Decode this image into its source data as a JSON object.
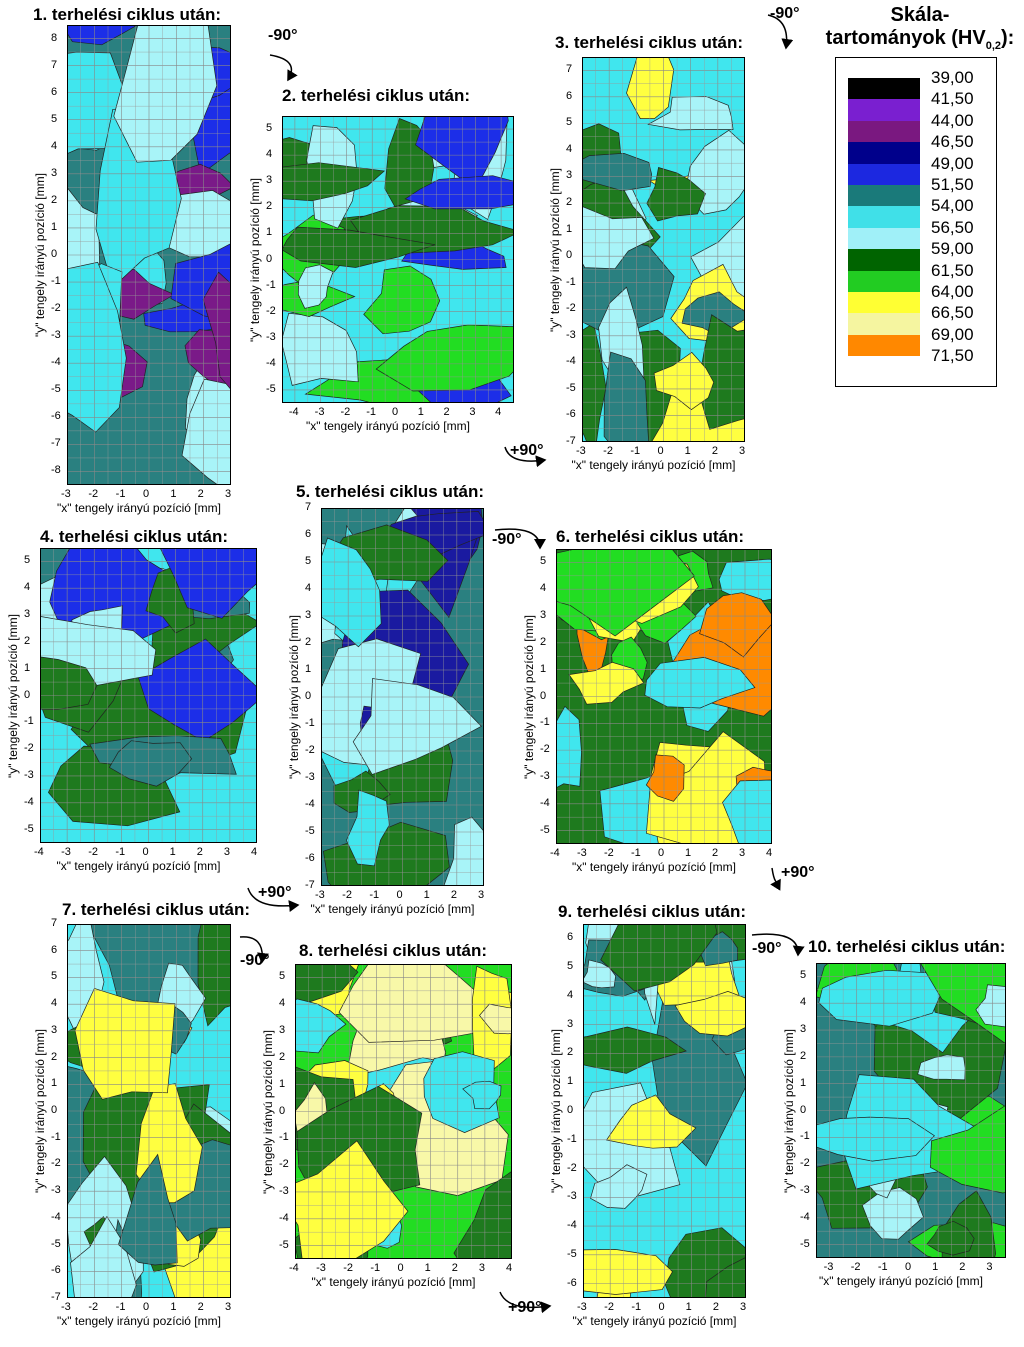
{
  "chart_data": [
    {
      "type": "heatmap",
      "title": "1. terhelési ciklus után:",
      "xlabel": "\"x\" tengely irányú pozíció [mm]",
      "ylabel": "\"y\" tengely irányú pozíció [mm]",
      "xlim": [
        -3,
        3
      ],
      "ylim": [
        -8.5,
        8.5
      ],
      "x_ticks": [
        "-3",
        "-2",
        "-1",
        "0",
        "1",
        "2",
        "3"
      ],
      "y_ticks": [
        "8",
        "7",
        "6",
        "5",
        "4",
        "3",
        "2",
        "1",
        "0",
        "-1",
        "-2",
        "-3",
        "-4",
        "-5",
        "-6",
        "-7",
        "-8"
      ],
      "dominant_range": "51,50–56,50"
    },
    {
      "type": "heatmap",
      "title": "2. terhelési ciklus után:",
      "xlabel": "\"x\" tengely irányú pozíció [mm]",
      "ylabel": "\"y\" tengely irányú pozíció [mm]",
      "xlim": [
        -4.5,
        4.5
      ],
      "ylim": [
        -5.5,
        5.5
      ],
      "x_ticks": [
        "-4",
        "-3",
        "-2",
        "-1",
        "0",
        "1",
        "2",
        "3",
        "4"
      ],
      "y_ticks": [
        "5",
        "4",
        "3",
        "2",
        "1",
        "0",
        "-1",
        "-2",
        "-3",
        "-4",
        "-5"
      ],
      "dominant_range": "54,00–59,00"
    },
    {
      "type": "heatmap",
      "title": "3. terhelési ciklus után:",
      "xlabel": "\"x\" tengely irányú pozíció [mm]",
      "ylabel": "\"y\" tengely irányú pozíció [mm]",
      "xlim": [
        -3,
        3
      ],
      "ylim": [
        -7,
        7.5
      ],
      "x_ticks": [
        "-3",
        "-2",
        "-1",
        "0",
        "1",
        "2",
        "3"
      ],
      "y_ticks": [
        "7",
        "6",
        "5",
        "4",
        "3",
        "2",
        "1",
        "0",
        "-1",
        "-2",
        "-3",
        "-4",
        "-5",
        "-6",
        "-7"
      ],
      "dominant_range": "54,00–59,00"
    },
    {
      "type": "heatmap",
      "title": "4. terhelési ciklus után:",
      "xlabel": "\"x\" tengely irányú pozíció [mm]",
      "ylabel": "\"y\" tengely irányú pozíció [mm]",
      "xlim": [
        -4,
        4
      ],
      "ylim": [
        -5.5,
        5.5
      ],
      "x_ticks": [
        "-4",
        "-3",
        "-2",
        "-1",
        "0",
        "1",
        "2",
        "3",
        "4"
      ],
      "y_ticks": [
        "5",
        "4",
        "3",
        "2",
        "1",
        "0",
        "-1",
        "-2",
        "-3",
        "-4",
        "-5"
      ],
      "dominant_range": "54,00–59,00"
    },
    {
      "type": "heatmap",
      "title": "5. terhelési ciklus után:",
      "xlabel": "\"x\" tengely irányú pozíció [mm]",
      "ylabel": "\"y\" tengely irányú pozíció [mm]",
      "xlim": [
        -3,
        3
      ],
      "ylim": [
        -7,
        7
      ],
      "x_ticks": [
        "-3",
        "-2",
        "-1",
        "0",
        "1",
        "2",
        "3"
      ],
      "y_ticks": [
        "7",
        "6",
        "5",
        "4",
        "3",
        "2",
        "1",
        "0",
        "-1",
        "-2",
        "-3",
        "-4",
        "-5",
        "-6",
        "-7"
      ],
      "dominant_range": "51,50–56,50"
    },
    {
      "type": "heatmap",
      "title": "6. terhelési ciklus után:",
      "xlabel": "\"x\" tengely irányú pozíció [mm]",
      "ylabel": "\"y\" tengely irányú pozíció [mm]",
      "xlim": [
        -4,
        4
      ],
      "ylim": [
        -5.5,
        5.5
      ],
      "x_ticks": [
        "-4",
        "-3",
        "-2",
        "-1",
        "0",
        "1",
        "2",
        "3",
        "4"
      ],
      "y_ticks": [
        "5",
        "4",
        "3",
        "2",
        "1",
        "0",
        "-1",
        "-2",
        "-3",
        "-4",
        "-5"
      ],
      "dominant_range": "56,50–61,50"
    },
    {
      "type": "heatmap",
      "title": "7. terhelési ciklus után:",
      "xlabel": "\"x\" tengely irányú pozíció [mm]",
      "ylabel": "\"y\" tengely irányú pozíció [mm]",
      "xlim": [
        -3,
        3
      ],
      "ylim": [
        -7,
        7
      ],
      "x_ticks": [
        "-3",
        "-2",
        "-1",
        "0",
        "1",
        "2",
        "3"
      ],
      "y_ticks": [
        "7",
        "6",
        "5",
        "4",
        "3",
        "2",
        "1",
        "0",
        "-1",
        "-2",
        "-3",
        "-4",
        "-5",
        "-6",
        "-7"
      ],
      "dominant_range": "54,00–59,00"
    },
    {
      "type": "heatmap",
      "title": "8. terhelési ciklus után:",
      "xlabel": "\"x\" tengely irányú pozíció [mm]",
      "ylabel": "\"y\" tengely irányú pozíció [mm]",
      "xlim": [
        -4,
        4
      ],
      "ylim": [
        -5.5,
        5.5
      ],
      "x_ticks": [
        "-4",
        "-3",
        "-2",
        "-1",
        "0",
        "1",
        "2",
        "3",
        "4"
      ],
      "y_ticks": [
        "5",
        "4",
        "3",
        "2",
        "1",
        "0",
        "-1",
        "-2",
        "-3",
        "-4",
        "-5"
      ],
      "dominant_range": "59,00–64,00"
    },
    {
      "type": "heatmap",
      "title": "9. terhelési ciklus után:",
      "xlabel": "\"x\" tengely irányú pozíció [mm]",
      "ylabel": "\"y\" tengely irányú pozíció [mm]",
      "xlim": [
        -3,
        3
      ],
      "ylim": [
        -6.5,
        6.5
      ],
      "x_ticks": [
        "-3",
        "-2",
        "-1",
        "0",
        "1",
        "2",
        "3"
      ],
      "y_ticks": [
        "6",
        "5",
        "4",
        "3",
        "2",
        "1",
        "0",
        "-1",
        "-2",
        "-3",
        "-4",
        "-5",
        "-6"
      ],
      "dominant_range": "54,00–59,00"
    },
    {
      "type": "heatmap",
      "title": "10. terhelési ciklus után:",
      "xlabel": "\"x\" tengely irányú pozíció [mm]",
      "ylabel": "\"y\" tengely irányú pozíció [mm]",
      "xlim": [
        -3.5,
        3.5
      ],
      "ylim": [
        -5.5,
        5.5
      ],
      "x_ticks": [
        "-3",
        "-2",
        "-1",
        "0",
        "1",
        "2",
        "3"
      ],
      "y_ticks": [
        "5",
        "4",
        "3",
        "2",
        "1",
        "0",
        "-1",
        "-2",
        "-3",
        "-4",
        "-5"
      ],
      "dominant_range": "51,50–56,50"
    }
  ],
  "rotations": [
    "-90°",
    "+90°",
    "-90°",
    "-90°",
    "+90°",
    "+90°",
    "-90°",
    "+90°",
    "-90°"
  ],
  "legend": {
    "title_line1": "Skála-",
    "title_line2": "tartományok (HV",
    "title_sub": "0,2",
    "title_end": "):",
    "values": [
      "39,00",
      "41,50",
      "44,00",
      "46,50",
      "49,00",
      "51,50",
      "54,00",
      "56,50",
      "59,00",
      "61,50",
      "64,00",
      "66,50",
      "69,00",
      "71,50"
    ],
    "colors": [
      "#000000",
      "#7a1fd0",
      "#7a1880",
      "#00008b",
      "#1c28e0",
      "#1a7a7a",
      "#40e0e8",
      "#a0f0f8",
      "#006400",
      "#22cc22",
      "#ffff33",
      "#f5f5a0",
      "#ff8800",
      "#ff1100"
    ]
  },
  "palette": {
    "lvl51": "#2a8080",
    "lvl54": "#40e6ee",
    "lvl56": "#a8f4f8",
    "lvl59": "#1e7a1e",
    "lvl61": "#22dd22",
    "lvl64": "#ffff40",
    "lvl66": "#f8f8a8",
    "lvl46": "#1a1aa0",
    "lvl49": "#1c2ee8",
    "lvl44": "#7a1a88",
    "lvl41": "#8a2be2",
    "lvl69": "#ff8a00"
  }
}
